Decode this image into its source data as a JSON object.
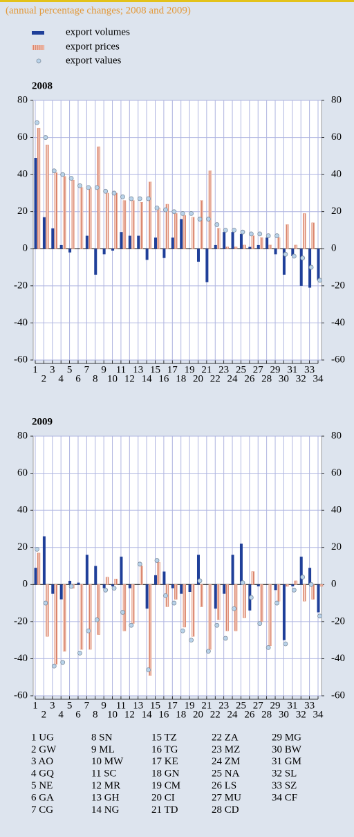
{
  "subtitle": "(annual percentage changes; 2008 and 2009)",
  "chart_data": [
    {
      "type": "bar",
      "title": "2008",
      "categories": [
        "1",
        "2",
        "3",
        "4",
        "5",
        "6",
        "7",
        "8",
        "9",
        "10",
        "11",
        "12",
        "13",
        "14",
        "15",
        "16",
        "17",
        "18",
        "19",
        "20",
        "21",
        "22",
        "23",
        "24",
        "25",
        "26",
        "27",
        "28",
        "29",
        "30",
        "31",
        "32",
        "33",
        "34"
      ],
      "series": [
        {
          "name": "export volumes",
          "color": "#1f3f99",
          "values": [
            49,
            17,
            11,
            2,
            -2,
            0,
            7,
            -14,
            -3,
            -1,
            9,
            7,
            7,
            -6,
            6,
            -5,
            6,
            16,
            0,
            -7,
            -18,
            2,
            9,
            9,
            8,
            1,
            2,
            6,
            -3,
            -14,
            -4,
            -20,
            -21,
            -17
          ]
        },
        {
          "name": "export prices",
          "color": "#e39a82",
          "values": [
            65,
            56,
            41,
            39,
            37,
            33,
            33,
            55,
            30,
            30,
            26,
            26,
            25,
            36,
            22,
            24,
            19,
            18,
            17,
            26,
            42,
            11,
            1,
            1,
            2,
            7,
            6,
            2,
            6,
            13,
            2,
            19,
            14,
            0
          ]
        },
        {
          "name": "export values",
          "color": "#b9d3ea",
          "values": [
            68,
            60,
            42,
            40,
            38,
            34,
            33,
            33,
            31,
            30,
            28,
            27,
            27,
            27,
            22,
            21,
            20,
            19,
            19,
            16,
            16,
            13,
            10,
            10,
            9,
            8,
            8,
            7,
            7,
            -3,
            -4,
            -5,
            -10,
            -17
          ]
        }
      ],
      "ylim": [
        -60,
        80
      ],
      "yticks": [
        -60,
        -40,
        -20,
        0,
        20,
        40,
        60,
        80
      ],
      "grid": true
    },
    {
      "type": "bar",
      "title": "2009",
      "categories": [
        "1",
        "2",
        "3",
        "4",
        "5",
        "6",
        "7",
        "8",
        "9",
        "10",
        "11",
        "12",
        "13",
        "14",
        "15",
        "16",
        "17",
        "18",
        "19",
        "20",
        "21",
        "22",
        "23",
        "24",
        "25",
        "26",
        "27",
        "28",
        "29",
        "30",
        "31",
        "32",
        "33",
        "34"
      ],
      "series": [
        {
          "name": "export volumes",
          "color": "#1f3f99",
          "values": [
            9,
            26,
            -5,
            -8,
            2,
            1,
            16,
            10,
            -2,
            -1,
            15,
            -2,
            0,
            -13,
            5,
            7,
            -2,
            -5,
            -4,
            16,
            0,
            -13,
            -5,
            16,
            22,
            -14,
            -1,
            0,
            -3,
            -30,
            -1,
            15,
            9,
            -15
          ]
        },
        {
          "name": "export prices",
          "color": "#e39a82",
          "values": [
            17,
            -28,
            -43,
            -36,
            -2,
            -35,
            -35,
            -27,
            4,
            3,
            -25,
            -21,
            10,
            -49,
            12,
            -12,
            -8,
            -23,
            -28,
            -12,
            -35,
            -19,
            -25,
            -25,
            -18,
            7,
            -20,
            -33,
            -9,
            -1,
            2,
            -9,
            -8,
            -1
          ]
        },
        {
          "name": "export values",
          "color": "#b9d3ea",
          "values": [
            19,
            -10,
            -44,
            -42,
            -1,
            -37,
            -25,
            -19,
            -3,
            -2,
            -15,
            -22,
            11,
            -46,
            13,
            -6,
            -10,
            -25,
            -30,
            2,
            -36,
            -22,
            -29,
            -13,
            1,
            -7,
            -21,
            -34,
            -10,
            -32,
            -3,
            4,
            0,
            -17
          ]
        }
      ],
      "ylim": [
        -60,
        80
      ],
      "yticks": [
        -60,
        -40,
        -20,
        0,
        20,
        40,
        60,
        80
      ],
      "grid": true
    }
  ],
  "key": [
    "1 UG",
    "2 GW",
    "3 AO",
    "4 GQ",
    "5 NE",
    "6 GA",
    "7 CG",
    "8 SN",
    "9 ML",
    "10 MW",
    "11 SC",
    "12 MR",
    "13 GH",
    "14 NG",
    "15 TZ",
    "16 TG",
    "17 KE",
    "18 GN",
    "19 CM",
    "20 CI",
    "21 TD",
    "22 ZA",
    "23 MZ",
    "24 ZM",
    "25 NA",
    "26 LS",
    "27 MU",
    "28 CD",
    "29 MG",
    "30 BW",
    "31 GM",
    "32 SL",
    "33 SZ",
    "34 CF"
  ]
}
